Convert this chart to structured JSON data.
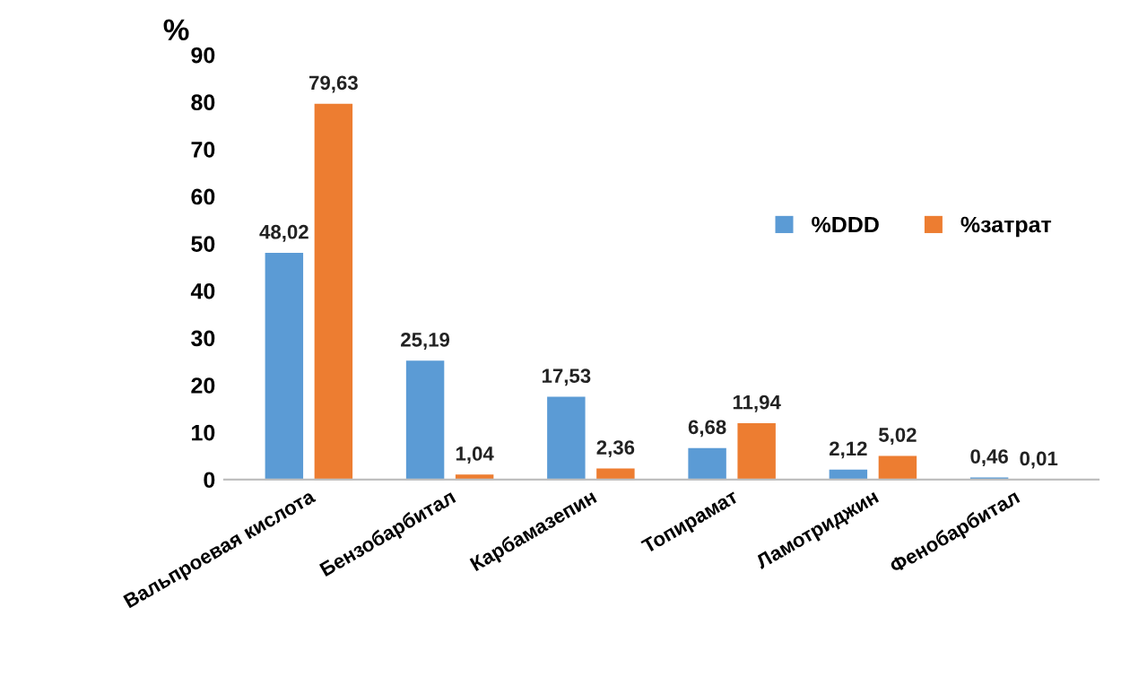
{
  "chart_data": {
    "type": "bar",
    "ylabel": "%",
    "categories": [
      "Вальпроевая кислота",
      "Бензобарбитал",
      "Карбамазепин",
      "Топирамат",
      "Ламотриджин",
      "Фенобарбитал"
    ],
    "series": [
      {
        "name": "%DDD",
        "color": "#5b9bd5",
        "values": [
          48.02,
          25.19,
          17.53,
          6.68,
          2.12,
          0.46
        ],
        "value_labels": [
          "48,02",
          "25,19",
          "17,53",
          "6,68",
          "2,12",
          "0,46"
        ]
      },
      {
        "name": "%затрат",
        "color": "#ed7d31",
        "values": [
          79.63,
          1.04,
          2.36,
          11.94,
          5.02,
          0.01
        ],
        "value_labels": [
          "79,63",
          "1,04",
          "2,36",
          "11,94",
          "5,02",
          "0,01"
        ]
      }
    ],
    "ylim": [
      0,
      90
    ],
    "yticks": [
      0,
      10,
      20,
      30,
      40,
      50,
      60,
      70,
      80,
      90
    ],
    "grid": false,
    "legend": "right"
  }
}
